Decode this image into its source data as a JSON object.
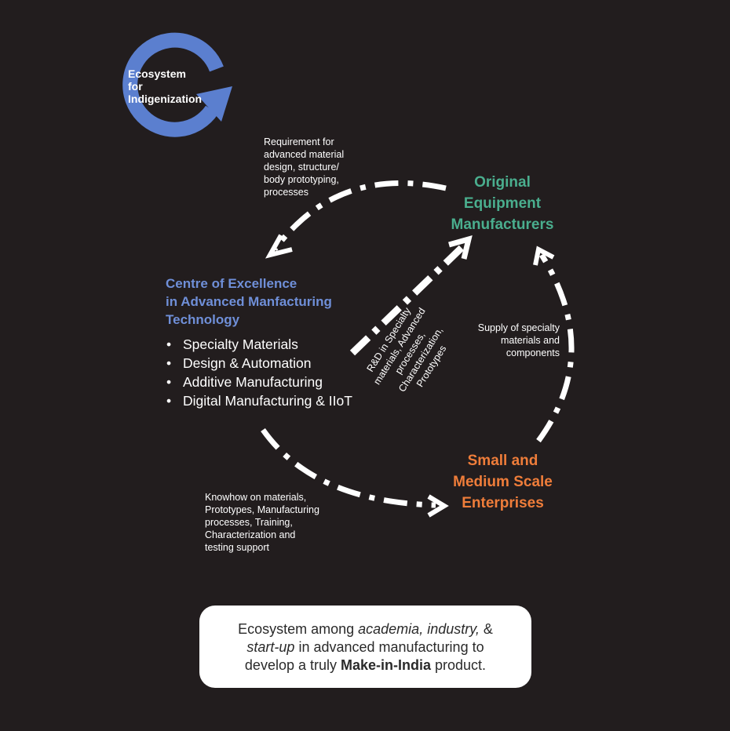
{
  "logo": {
    "line1": "Ecosystem",
    "line2": "for",
    "line3": "Indigenization",
    "ring_color": "#5b7fcf"
  },
  "nodes": {
    "oem": {
      "lines": [
        "Original",
        "Equipment",
        "Manufacturers"
      ],
      "color": "#4aae8e"
    },
    "sme": {
      "lines": [
        "Small and",
        "Medium Scale",
        "Enterprises"
      ],
      "color": "#ef7d3a"
    },
    "coe": {
      "title_lines": [
        "Centre of Excellence",
        "in Advanced Manfacturing",
        "Technology"
      ],
      "color": "#6f8fd8",
      "items": [
        "Specialty Materials",
        "Design & Automation",
        "Additive Manufacturing",
        "Digital Manufacturing & IIoT"
      ]
    }
  },
  "flows": {
    "requirement": [
      "Requirement for",
      "advanced material",
      "design, structure/",
      "body prototyping,",
      "processes"
    ],
    "supply": [
      "Supply of specialty",
      "materials and",
      "components"
    ],
    "knowhow": [
      "Knowhow on materials,",
      "Prototypes, Manufacturing",
      "processes, Training,",
      "Characterization and",
      "testing support"
    ],
    "rnd": [
      "R&D in Specialty",
      "materials, Advanced",
      "processes,",
      "Characterization,",
      "Prototypes"
    ]
  },
  "caption": {
    "part1": "Ecosystem among ",
    "part2_italic": "academia, industry,",
    "part3": " &",
    "part4_italic": "start-up",
    "part5": " in advanced manufacturing to",
    "part6": "develop a truly ",
    "part7_bold": "Make-in-India",
    "part8": " product."
  }
}
